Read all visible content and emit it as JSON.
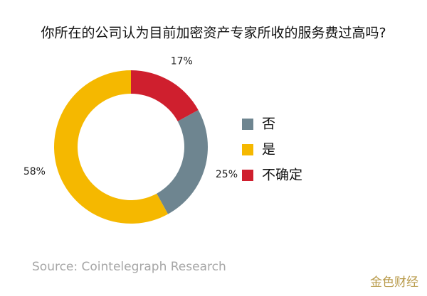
{
  "chart_data": {
    "type": "pie",
    "title": "你所在的公司认为目前加密资产专家所收的服务费过高吗?",
    "categories": [
      "否",
      "是",
      "不确定"
    ],
    "values": [
      25,
      58,
      17
    ],
    "value_labels": [
      "25%",
      "58%",
      "17%"
    ],
    "colors": [
      "#6e8590",
      "#f5b800",
      "#cf1f2e"
    ],
    "source": "Source: Cointelegraph Research",
    "watermark": "金色财经"
  }
}
